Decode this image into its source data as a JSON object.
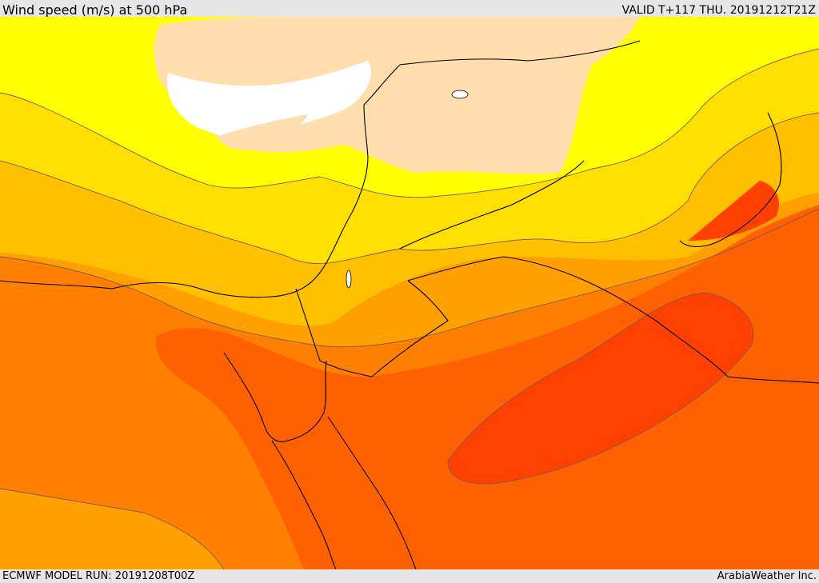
{
  "header": {
    "title": "Wind speed (m/s) at 500 hPa",
    "valid": "VALID T+117 THU. 20191212T21Z"
  },
  "footer": {
    "model_run": "ECMWF MODEL RUN: 20191208T00Z",
    "credit": "ArabiaWeather Inc."
  },
  "map": {
    "field": "wind-speed-500hPa",
    "colors": {
      "lowest": "#ffffff",
      "very_low": "#ffdead",
      "low": "#ffff00",
      "low_mid": "#ffdf00",
      "mid": "#ffc000",
      "mid_high": "#ffa000",
      "high": "#ff8000",
      "higher": "#ff6000",
      "highest": "#ff4000",
      "coastline": "#000000",
      "contour": "#7a5a5a"
    }
  }
}
